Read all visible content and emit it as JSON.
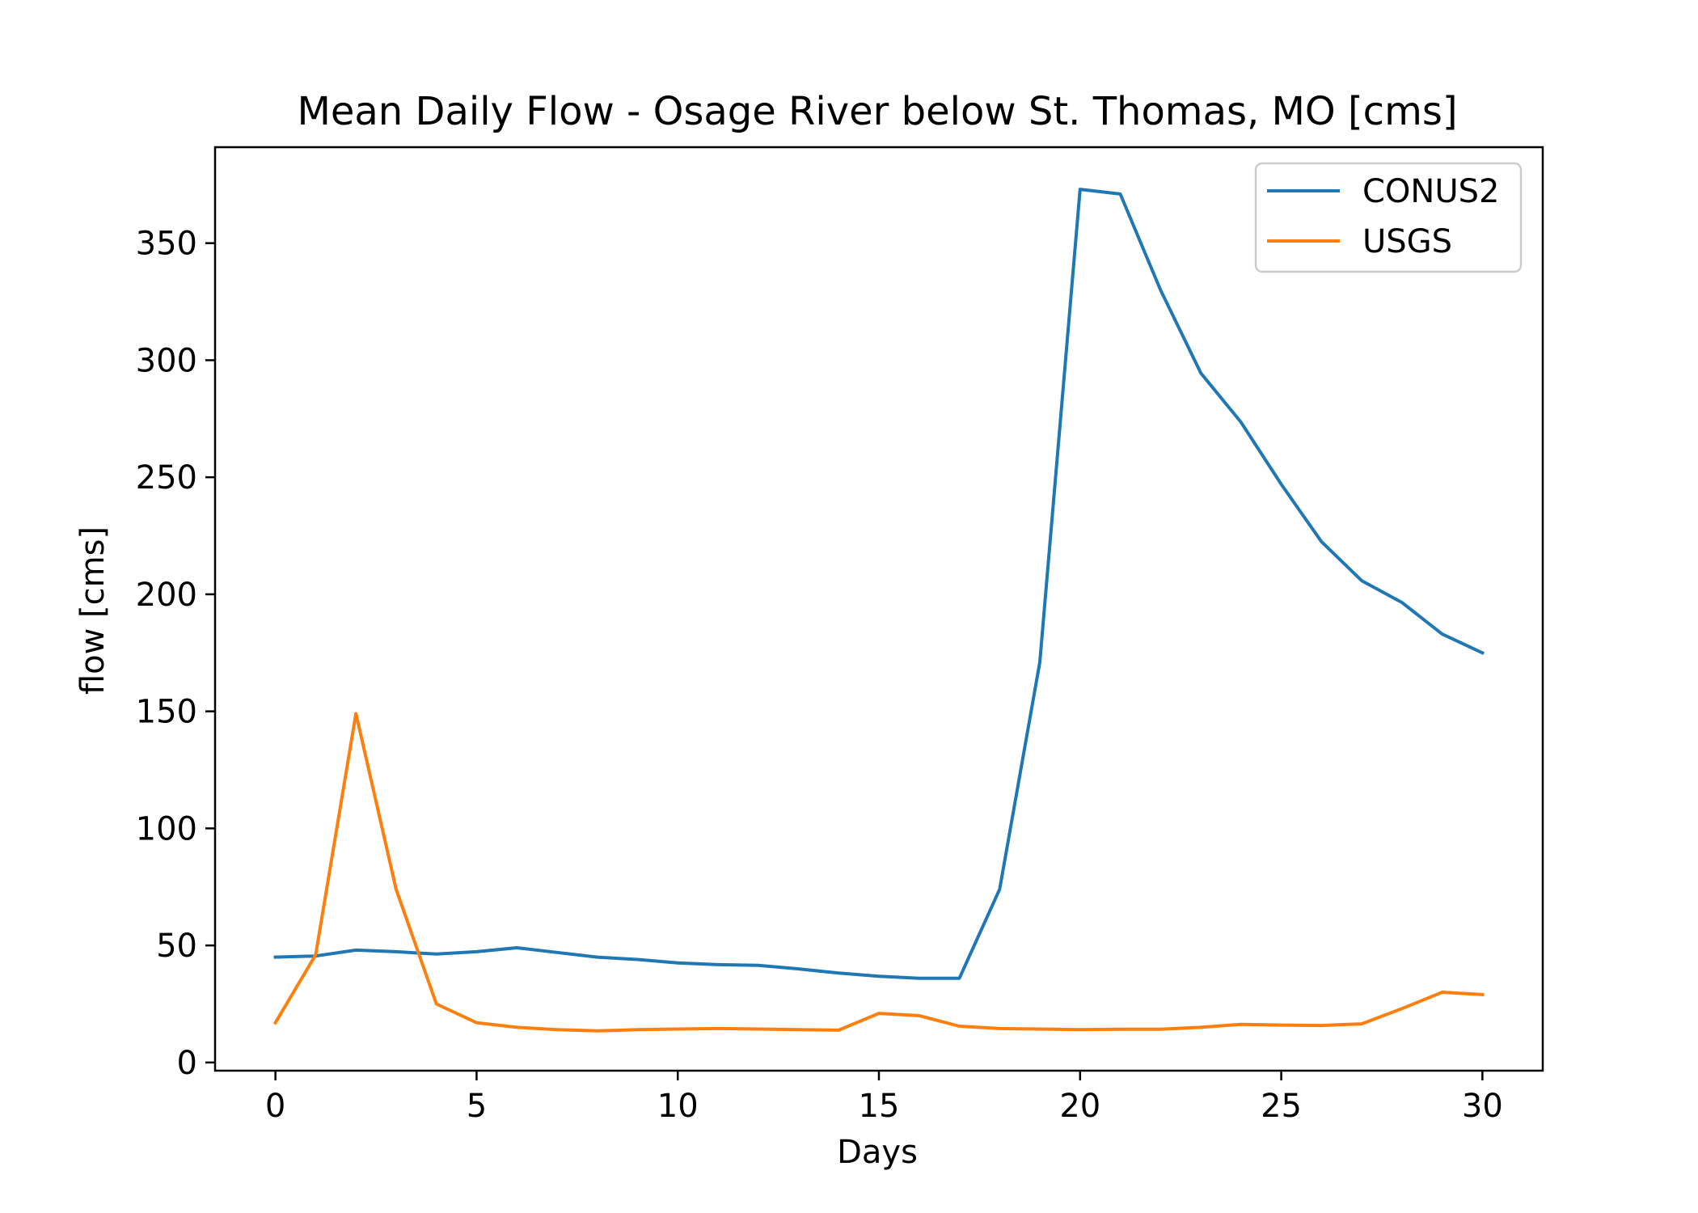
{
  "chart_data": {
    "type": "line",
    "title": "Mean Daily Flow - Osage River below St. Thomas, MO [cms]",
    "xlabel": "Days",
    "ylabel": "flow [cms]",
    "xlim": [
      -1.5,
      31.5
    ],
    "ylim": [
      -3.5,
      391
    ],
    "xticks": [
      0,
      5,
      10,
      15,
      20,
      25,
      30
    ],
    "yticks": [
      0,
      50,
      100,
      150,
      200,
      250,
      300,
      350
    ],
    "grid": false,
    "legend_position": "top-right",
    "x": [
      0,
      1,
      2,
      3,
      4,
      5,
      6,
      7,
      8,
      9,
      10,
      11,
      12,
      13,
      14,
      15,
      16,
      17,
      18,
      19,
      20,
      21,
      22,
      23,
      24,
      25,
      26,
      27,
      28,
      29,
      30
    ],
    "series": [
      {
        "name": "CONUS2",
        "color": "#1f77b4",
        "values": [
          45,
          45.5,
          48,
          47.3,
          46.3,
          47.3,
          49,
          47,
          45,
          44,
          42.5,
          41.8,
          41.5,
          40,
          38.2,
          36.8,
          36,
          36,
          74,
          171,
          373,
          371,
          330,
          294.5,
          273.5,
          247,
          222.5,
          205.8,
          196.5,
          183,
          175
        ]
      },
      {
        "name": "USGS",
        "color": "#ff7f0e",
        "values": [
          17,
          46,
          149,
          74,
          25,
          17,
          15,
          14,
          13.5,
          14,
          14.3,
          14.5,
          14.3,
          14,
          13.8,
          21,
          20,
          15.5,
          14.5,
          14.3,
          14,
          14.2,
          14.2,
          15,
          16.3,
          16,
          15.8,
          16.5,
          23,
          30,
          29
        ]
      }
    ]
  }
}
